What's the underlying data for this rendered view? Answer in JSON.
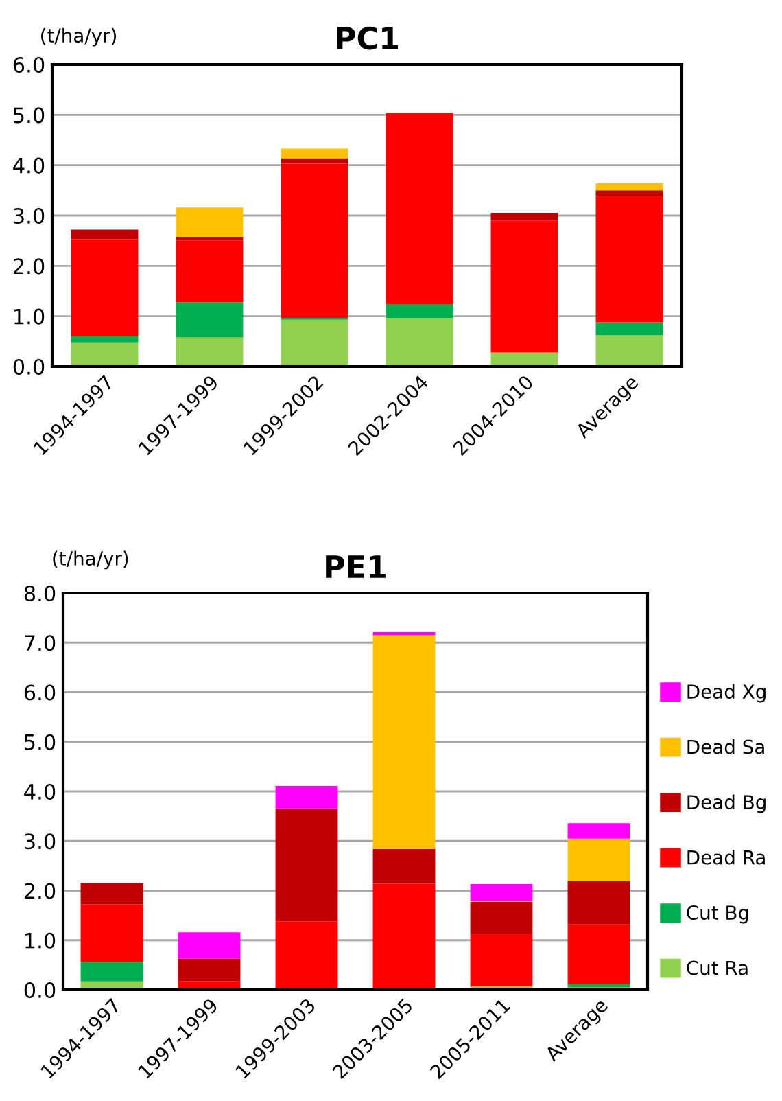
{
  "chart_data": [
    {
      "type": "bar",
      "title": "PC1",
      "ylabel": "(t/ha/yr)",
      "stacked": true,
      "categories": [
        "1994-1997",
        "1997-1999",
        "1999-2002",
        "2002-2004",
        "2004-2010",
        "Average"
      ],
      "series": [
        {
          "color": "#92d050",
          "values": [
            0.48,
            0.58,
            0.93,
            0.95,
            0.28,
            0.62
          ]
        },
        {
          "color": "#00b050",
          "values": [
            0.12,
            0.7,
            0.03,
            0.29,
            0,
            0.26
          ]
        },
        {
          "color": "#ff0000",
          "values": [
            1.93,
            1.22,
            3.07,
            3.8,
            2.62,
            2.51
          ]
        },
        {
          "color": "#c00000",
          "values": [
            0.19,
            0.07,
            0.11,
            0,
            0.15,
            0.11
          ]
        },
        {
          "color": "#ffc000",
          "values": [
            0,
            0.59,
            0.19,
            0,
            0,
            0.14
          ]
        }
      ],
      "ylim": [
        0,
        6
      ],
      "yticks": [
        {
          "value": 0,
          "label": "0.0"
        },
        {
          "value": 1,
          "label": "1.0"
        },
        {
          "value": 2,
          "label": "2.0"
        },
        {
          "value": 3,
          "label": "3.0"
        },
        {
          "value": 4,
          "label": "4.0"
        },
        {
          "value": 5,
          "label": "5.0"
        },
        {
          "value": 6,
          "label": "6.0"
        }
      ],
      "grid": "y"
    },
    {
      "type": "bar",
      "title": "PE1",
      "ylabel": "(t/ha/yr)",
      "stacked": true,
      "categories": [
        "1994-1997",
        "1997-1999",
        "1999-2003",
        "2003-2005",
        "2005-2011",
        "Average"
      ],
      "series": [
        {
          "name": "Cut Ra",
          "color": "#92d050",
          "values": [
            0.17,
            0,
            0,
            0,
            0.07,
            0.05
          ]
        },
        {
          "name": "Cut Bg",
          "color": "#00b050",
          "values": [
            0.39,
            0,
            0,
            0,
            0,
            0.06
          ]
        },
        {
          "name": "Dead Ra",
          "color": "#ff0000",
          "values": [
            1.16,
            0.17,
            1.38,
            2.14,
            1.06,
            1.21
          ]
        },
        {
          "name": "Dead Bg",
          "color": "#c00000",
          "values": [
            0.44,
            0.46,
            2.28,
            0.7,
            0.64,
            0.87
          ]
        },
        {
          "name": "Dead Sa",
          "color": "#ffc000",
          "values": [
            0,
            0,
            0,
            4.31,
            0.03,
            0.86
          ]
        },
        {
          "name": "Dead Xg",
          "color": "#ff00ff",
          "values": [
            0,
            0.53,
            0.45,
            0.06,
            0.33,
            0.31
          ]
        }
      ],
      "ylim": [
        0,
        8
      ],
      "yticks": [
        {
          "value": 0,
          "label": "0.0"
        },
        {
          "value": 1,
          "label": "1.0"
        },
        {
          "value": 2,
          "label": "2.0"
        },
        {
          "value": 3,
          "label": "3.0"
        },
        {
          "value": 4,
          "label": "4.0"
        },
        {
          "value": 5,
          "label": "5.0"
        },
        {
          "value": 6,
          "label": "6.0"
        },
        {
          "value": 7,
          "label": "7.0"
        },
        {
          "value": 8,
          "label": "8.0"
        }
      ],
      "grid": "y",
      "legend": "right"
    }
  ]
}
